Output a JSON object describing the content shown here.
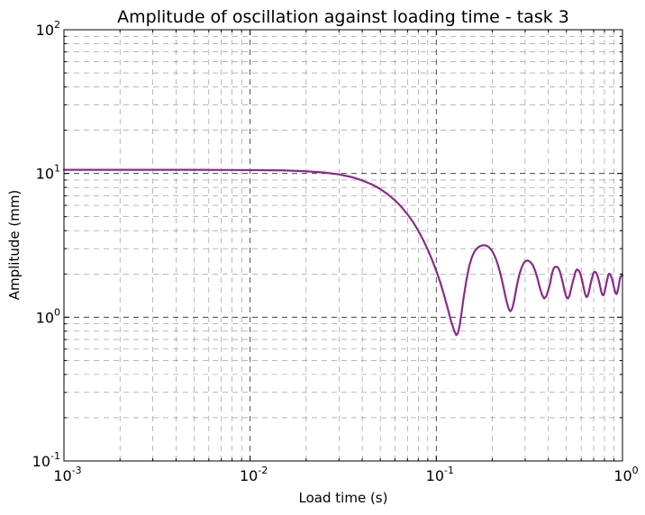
{
  "chart_data": {
    "type": "line",
    "title": "Amplitude of oscillation against loading time - task 3",
    "xlabel": "Load time (s)",
    "ylabel": "Amplitude (mm)",
    "xscale": "log",
    "yscale": "log",
    "xlim": [
      0.001,
      1
    ],
    "ylim": [
      0.1,
      100
    ],
    "grid": true,
    "x_ticks": [
      {
        "value": 0.001,
        "base": "10",
        "exp": "-3"
      },
      {
        "value": 0.01,
        "base": "10",
        "exp": "-2"
      },
      {
        "value": 0.1,
        "base": "10",
        "exp": "-1"
      },
      {
        "value": 1,
        "base": "10",
        "exp": "0"
      }
    ],
    "y_ticks": [
      {
        "value": 0.1,
        "base": "10",
        "exp": "-1"
      },
      {
        "value": 1,
        "base": "10",
        "exp": "0"
      },
      {
        "value": 10,
        "base": "10",
        "exp": "1"
      },
      {
        "value": 100,
        "base": "10",
        "exp": "2"
      }
    ],
    "series": [
      {
        "color": "#8b2a8b",
        "x": [
          0.001,
          0.002,
          0.005,
          0.01,
          0.015,
          0.02,
          0.025,
          0.03,
          0.035,
          0.04,
          0.045,
          0.05,
          0.055,
          0.06,
          0.065,
          0.07,
          0.075,
          0.08,
          0.085,
          0.09,
          0.095,
          0.1,
          0.105,
          0.11,
          0.115,
          0.12,
          0.125,
          0.128,
          0.131,
          0.134,
          0.137,
          0.14,
          0.145,
          0.15,
          0.155,
          0.16,
          0.165,
          0.17,
          0.175,
          0.18,
          0.185,
          0.19,
          0.195,
          0.2,
          0.205,
          0.21,
          0.215,
          0.22,
          0.225,
          0.23,
          0.235,
          0.24,
          0.245,
          0.25,
          0.255,
          0.26,
          0.265,
          0.27,
          0.275,
          0.28,
          0.285,
          0.29,
          0.295,
          0.3,
          0.31,
          0.32,
          0.33,
          0.34,
          0.35,
          0.36,
          0.37,
          0.38,
          0.39,
          0.4,
          0.41,
          0.415,
          0.42,
          0.425,
          0.43,
          0.44,
          0.45,
          0.46,
          0.47,
          0.48,
          0.49,
          0.5,
          0.51,
          0.52,
          0.53,
          0.54,
          0.55,
          0.555,
          0.56,
          0.565,
          0.57,
          0.58,
          0.59,
          0.6,
          0.61,
          0.62,
          0.63,
          0.64,
          0.65,
          0.66,
          0.67,
          0.68,
          0.69,
          0.695,
          0.7,
          0.705,
          0.71,
          0.72,
          0.73,
          0.74,
          0.75,
          0.76,
          0.77,
          0.78,
          0.79,
          0.8,
          0.81,
          0.82,
          0.83,
          0.835,
          0.84,
          0.845,
          0.85,
          0.86,
          0.87,
          0.88,
          0.89,
          0.9,
          0.91,
          0.92,
          0.93,
          0.94,
          0.95,
          0.96,
          0.965,
          0.97,
          0.975,
          0.98,
          0.99,
          1.0
        ],
        "y": [
          10.6,
          10.6,
          10.6,
          10.55,
          10.5,
          10.35,
          10.15,
          9.85,
          9.45,
          8.95,
          8.4,
          7.8,
          7.15,
          6.5,
          5.85,
          5.2,
          4.6,
          4.0,
          3.45,
          2.95,
          2.5,
          2.1,
          1.75,
          1.43,
          1.16,
          0.94,
          0.8,
          0.75,
          0.78,
          0.9,
          1.1,
          1.35,
          1.8,
          2.25,
          2.6,
          2.85,
          3.0,
          3.1,
          3.15,
          3.17,
          3.15,
          3.1,
          3.0,
          2.87,
          2.7,
          2.5,
          2.28,
          2.05,
          1.82,
          1.6,
          1.4,
          1.25,
          1.14,
          1.1,
          1.14,
          1.25,
          1.42,
          1.62,
          1.82,
          2.0,
          2.15,
          2.28,
          2.38,
          2.45,
          2.48,
          2.42,
          2.3,
          2.1,
          1.85,
          1.6,
          1.43,
          1.35,
          1.4,
          1.55,
          1.75,
          1.92,
          2.05,
          2.15,
          2.22,
          2.25,
          2.22,
          2.1,
          1.9,
          1.7,
          1.5,
          1.38,
          1.35,
          1.42,
          1.58,
          1.75,
          1.9,
          2.0,
          2.08,
          2.12,
          2.15,
          2.12,
          2.05,
          1.92,
          1.75,
          1.58,
          1.45,
          1.38,
          1.4,
          1.5,
          1.65,
          1.8,
          1.92,
          2.0,
          2.04,
          2.06,
          2.07,
          2.05,
          1.98,
          1.88,
          1.75,
          1.62,
          1.5,
          1.43,
          1.42,
          1.48,
          1.6,
          1.73,
          1.85,
          1.93,
          1.98,
          2.0,
          2.01,
          1.98,
          1.92,
          1.83,
          1.72,
          1.62,
          1.52,
          1.46,
          1.45,
          1.5,
          1.6,
          1.72,
          1.8,
          1.86,
          1.9,
          1.92,
          1.95,
          1.96
        ]
      }
    ]
  }
}
